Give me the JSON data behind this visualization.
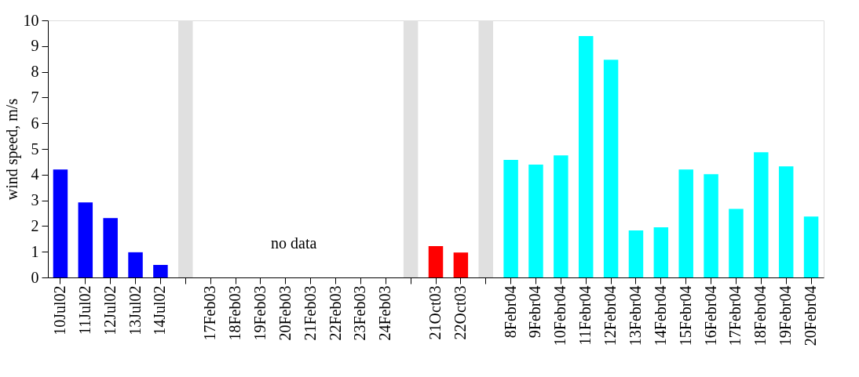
{
  "chart_data": {
    "type": "bar",
    "ylabel": "wind speed, m/s",
    "categories": [
      "10Jul02",
      "11Jul02",
      "12Jul02",
      "13Jul02",
      "14Jul02",
      null,
      "17Feb03",
      "18Feb03",
      "19Feb03",
      "20Feb03",
      "21Feb03",
      "22Feb03",
      "23Feb03",
      "24Feb03",
      null,
      "21Oct03",
      "22Oct03",
      null,
      "8Febr04",
      "9Febr04",
      "10Febr04",
      "11Febr04",
      "12Febr04",
      "13Febr04",
      "14Febr04",
      "15Febr04",
      "16Febr04",
      "17Febr04",
      "18Febr04",
      "19Febr04",
      "20Febr04"
    ],
    "series": [
      {
        "color": "#0000ff",
        "values": [
          4.2,
          2.92,
          2.31,
          0.98,
          0.49,
          null,
          null,
          null,
          null,
          null,
          null,
          null,
          null,
          null,
          null,
          null,
          null,
          null,
          null,
          null,
          null,
          null,
          null,
          null,
          null,
          null,
          null,
          null,
          null,
          null,
          null
        ]
      },
      {
        "color": "#e0e0e0",
        "values": [
          null,
          null,
          null,
          null,
          null,
          10,
          null,
          null,
          null,
          null,
          null,
          null,
          null,
          null,
          10,
          null,
          null,
          10,
          null,
          null,
          null,
          null,
          null,
          null,
          null,
          null,
          null,
          null,
          null,
          null,
          null
        ]
      },
      {
        "color": "#ff0000",
        "values": [
          null,
          null,
          null,
          null,
          null,
          null,
          null,
          null,
          null,
          null,
          null,
          null,
          null,
          null,
          null,
          1.22,
          0.97,
          null,
          null,
          null,
          null,
          null,
          null,
          null,
          null,
          null,
          null,
          null,
          null,
          null,
          null
        ]
      },
      {
        "color": "#00ffff",
        "values": [
          null,
          null,
          null,
          null,
          null,
          null,
          null,
          null,
          null,
          null,
          null,
          null,
          null,
          null,
          null,
          null,
          null,
          null,
          4.57,
          4.39,
          4.75,
          9.39,
          8.47,
          1.83,
          1.95,
          4.2,
          4.02,
          2.67,
          4.87,
          4.32,
          2.37
        ]
      }
    ],
    "ylim": [
      0,
      10
    ],
    "yticks": [
      0,
      1,
      2,
      3,
      4,
      5,
      6,
      7,
      8,
      9,
      10
    ],
    "annotations": [
      "no data"
    ],
    "grid": false,
    "legend": false
  }
}
